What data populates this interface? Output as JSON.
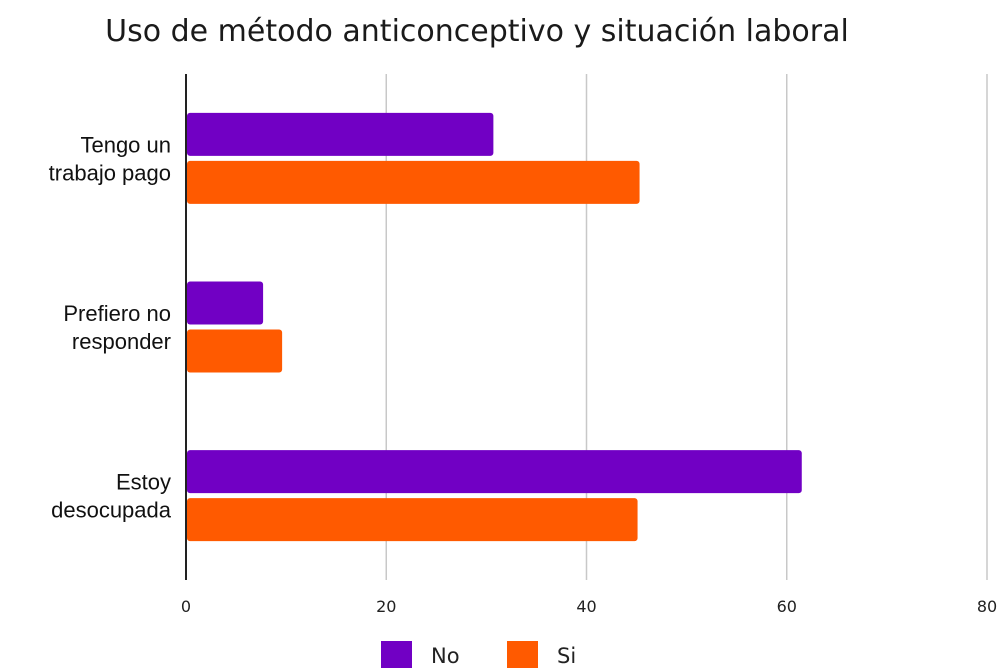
{
  "chart_data": {
    "type": "bar",
    "orientation": "horizontal",
    "title": "Uso de método anticonceptivo y situación laboral",
    "categories": [
      [
        "Tengo un",
        "trabajo pago"
      ],
      [
        "Prefiero no",
        "responder"
      ],
      [
        "Estoy",
        "desocupada"
      ]
    ],
    "series": [
      {
        "name": "No",
        "color": "#7100c4",
        "values": [
          30.7,
          7.7,
          61.5
        ]
      },
      {
        "name": "Si",
        "color": "#ff5a00",
        "values": [
          45.3,
          9.6,
          45.1
        ]
      }
    ],
    "xlim": [
      0,
      80
    ],
    "xticks": [
      0,
      20,
      40,
      60,
      80
    ],
    "grid": true,
    "legend_position": "bottom"
  }
}
